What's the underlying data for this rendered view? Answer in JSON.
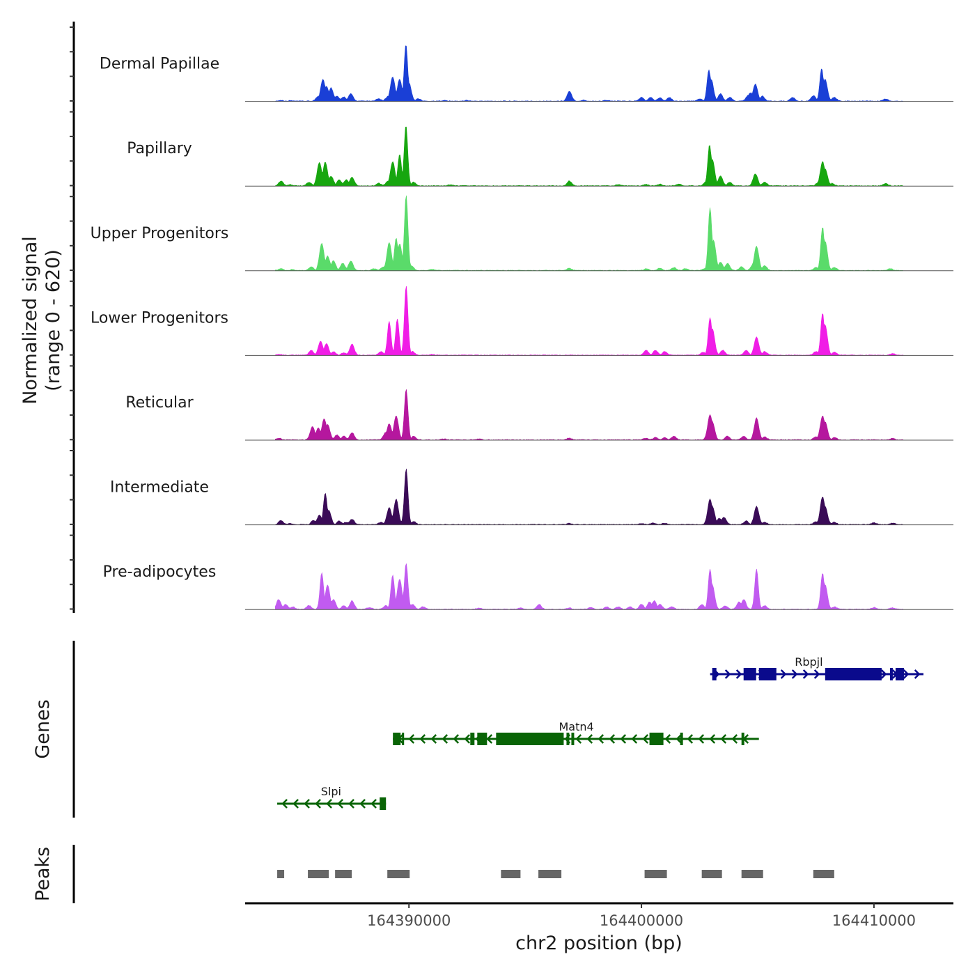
{
  "chart_data": {
    "type": "area",
    "title": "",
    "xlabel": "chr2 position (bp)",
    "ylabel": "Normalized signal\n(range 0 - 620)",
    "ylabel_lines": [
      "Normalized signal",
      "(range 0 - 620)"
    ],
    "ylim": [
      0,
      620
    ],
    "xlim": [
      164382954,
      164413418
    ],
    "x_ticks": [
      164390000,
      164400000,
      164410000
    ],
    "x_tick_labels": [
      "164390000",
      "164400000",
      "164410000"
    ],
    "grid": false,
    "tracks": [
      {
        "name": "Dermal Papillae",
        "color": "#1A3FD6",
        "peaks": [
          [
            164384500,
            6
          ],
          [
            164384900,
            4
          ],
          [
            164386100,
            40
          ],
          [
            164386300,
            180
          ],
          [
            164386450,
            120
          ],
          [
            164386650,
            110
          ],
          [
            164386900,
            40
          ],
          [
            164387200,
            35
          ],
          [
            164387500,
            60
          ],
          [
            164388700,
            20
          ],
          [
            164389100,
            40
          ],
          [
            164389300,
            200
          ],
          [
            164389600,
            180
          ],
          [
            164389870,
            470
          ],
          [
            164390000,
            150
          ],
          [
            164390400,
            20
          ],
          [
            164391500,
            6
          ],
          [
            164392500,
            6
          ],
          [
            164396900,
            80
          ],
          [
            164397500,
            8
          ],
          [
            164398500,
            8
          ],
          [
            164400000,
            30
          ],
          [
            164400400,
            30
          ],
          [
            164400800,
            30
          ],
          [
            164401200,
            30
          ],
          [
            164402500,
            20
          ],
          [
            164402900,
            260
          ],
          [
            164403000,
            180
          ],
          [
            164403400,
            60
          ],
          [
            164403800,
            30
          ],
          [
            164404600,
            50
          ],
          [
            164404700,
            70
          ],
          [
            164404900,
            140
          ],
          [
            164405200,
            40
          ],
          [
            164406500,
            30
          ],
          [
            164407400,
            45
          ],
          [
            164407750,
            270
          ],
          [
            164407900,
            180
          ],
          [
            164408300,
            30
          ],
          [
            164410500,
            18
          ]
        ]
      },
      {
        "name": "Papillary",
        "color": "#17A60F",
        "peaks": [
          [
            164384500,
            40
          ],
          [
            164384900,
            10
          ],
          [
            164385700,
            30
          ],
          [
            164386150,
            195
          ],
          [
            164386400,
            195
          ],
          [
            164386650,
            80
          ],
          [
            164387000,
            50
          ],
          [
            164387300,
            50
          ],
          [
            164387550,
            70
          ],
          [
            164388700,
            20
          ],
          [
            164389100,
            40
          ],
          [
            164389300,
            200
          ],
          [
            164389600,
            260
          ],
          [
            164389870,
            500
          ],
          [
            164390200,
            30
          ],
          [
            164391800,
            10
          ],
          [
            164396900,
            40
          ],
          [
            164399000,
            10
          ],
          [
            164400200,
            12
          ],
          [
            164400800,
            12
          ],
          [
            164401600,
            15
          ],
          [
            164402800,
            40
          ],
          [
            164402930,
            340
          ],
          [
            164403050,
            220
          ],
          [
            164403400,
            80
          ],
          [
            164403800,
            30
          ],
          [
            164404900,
            100
          ],
          [
            164405300,
            30
          ],
          [
            164407600,
            25
          ],
          [
            164407790,
            200
          ],
          [
            164407900,
            140
          ],
          [
            164408200,
            20
          ],
          [
            164410500,
            18
          ]
        ]
      },
      {
        "name": "Upper Progenitors",
        "color": "#5ADB6A",
        "peaks": [
          [
            164384500,
            15
          ],
          [
            164385000,
            8
          ],
          [
            164385800,
            30
          ],
          [
            164386250,
            225
          ],
          [
            164386500,
            120
          ],
          [
            164386750,
            80
          ],
          [
            164387150,
            60
          ],
          [
            164387500,
            80
          ],
          [
            164388500,
            15
          ],
          [
            164388900,
            30
          ],
          [
            164389150,
            230
          ],
          [
            164389450,
            270
          ],
          [
            164389600,
            220
          ],
          [
            164389880,
            620
          ],
          [
            164390100,
            40
          ],
          [
            164391000,
            10
          ],
          [
            164396900,
            20
          ],
          [
            164400200,
            15
          ],
          [
            164400800,
            20
          ],
          [
            164401400,
            25
          ],
          [
            164401900,
            15
          ],
          [
            164402700,
            15
          ],
          [
            164402950,
            520
          ],
          [
            164403100,
            250
          ],
          [
            164403400,
            70
          ],
          [
            164403700,
            60
          ],
          [
            164404300,
            30
          ],
          [
            164404800,
            50
          ],
          [
            164404950,
            200
          ],
          [
            164405300,
            40
          ],
          [
            164407500,
            25
          ],
          [
            164407790,
            360
          ],
          [
            164407900,
            240
          ],
          [
            164408300,
            25
          ],
          [
            164410700,
            15
          ]
        ]
      },
      {
        "name": "Lower Progenitors",
        "color": "#F01DE6",
        "peaks": [
          [
            164384400,
            8
          ],
          [
            164385800,
            40
          ],
          [
            164386200,
            115
          ],
          [
            164386450,
            95
          ],
          [
            164386750,
            30
          ],
          [
            164387200,
            20
          ],
          [
            164387550,
            90
          ],
          [
            164388800,
            30
          ],
          [
            164389150,
            280
          ],
          [
            164389500,
            300
          ],
          [
            164389880,
            570
          ],
          [
            164390150,
            30
          ],
          [
            164391000,
            6
          ],
          [
            164400200,
            40
          ],
          [
            164400600,
            40
          ],
          [
            164401000,
            30
          ],
          [
            164402650,
            25
          ],
          [
            164402950,
            310
          ],
          [
            164403050,
            220
          ],
          [
            164403500,
            40
          ],
          [
            164404500,
            40
          ],
          [
            164404950,
            150
          ],
          [
            164405300,
            30
          ],
          [
            164407500,
            30
          ],
          [
            164407790,
            350
          ],
          [
            164407900,
            250
          ],
          [
            164408300,
            25
          ],
          [
            164410800,
            12
          ]
        ]
      },
      {
        "name": "Reticular",
        "color": "#B5179E",
        "peaks": [
          [
            164384400,
            15
          ],
          [
            164385850,
            110
          ],
          [
            164386100,
            100
          ],
          [
            164386350,
            175
          ],
          [
            164386500,
            130
          ],
          [
            164386900,
            40
          ],
          [
            164387200,
            30
          ],
          [
            164387550,
            60
          ],
          [
            164389000,
            60
          ],
          [
            164389150,
            135
          ],
          [
            164389450,
            200
          ],
          [
            164389880,
            420
          ],
          [
            164390200,
            30
          ],
          [
            164391500,
            8
          ],
          [
            164393000,
            8
          ],
          [
            164396900,
            15
          ],
          [
            164400200,
            15
          ],
          [
            164400600,
            20
          ],
          [
            164401000,
            20
          ],
          [
            164401400,
            30
          ],
          [
            164402950,
            210
          ],
          [
            164403050,
            150
          ],
          [
            164403700,
            30
          ],
          [
            164404400,
            30
          ],
          [
            164404950,
            180
          ],
          [
            164405300,
            25
          ],
          [
            164407500,
            25
          ],
          [
            164407790,
            200
          ],
          [
            164407900,
            150
          ],
          [
            164408300,
            20
          ],
          [
            164410800,
            12
          ]
        ]
      },
      {
        "name": "Intermediate",
        "color": "#3A0B57",
        "peaks": [
          [
            164384500,
            35
          ],
          [
            164384900,
            10
          ],
          [
            164385900,
            35
          ],
          [
            164386150,
            80
          ],
          [
            164386400,
            260
          ],
          [
            164386550,
            120
          ],
          [
            164387000,
            30
          ],
          [
            164387300,
            20
          ],
          [
            164387550,
            45
          ],
          [
            164388800,
            20
          ],
          [
            164389150,
            140
          ],
          [
            164389450,
            210
          ],
          [
            164389880,
            460
          ],
          [
            164390200,
            25
          ],
          [
            164396900,
            10
          ],
          [
            164400000,
            10
          ],
          [
            164400500,
            12
          ],
          [
            164401000,
            12
          ],
          [
            164402950,
            210
          ],
          [
            164403050,
            150
          ],
          [
            164403350,
            50
          ],
          [
            164403550,
            60
          ],
          [
            164404500,
            30
          ],
          [
            164404950,
            150
          ],
          [
            164405300,
            20
          ],
          [
            164407500,
            25
          ],
          [
            164407790,
            230
          ],
          [
            164407900,
            150
          ],
          [
            164408300,
            20
          ],
          [
            164410000,
            15
          ],
          [
            164410800,
            12
          ]
        ]
      },
      {
        "name": "Pre-adipocytes",
        "color": "#C15BF0",
        "peaks": [
          [
            164384400,
            80
          ],
          [
            164384700,
            40
          ],
          [
            164385000,
            20
          ],
          [
            164385700,
            30
          ],
          [
            164386250,
            300
          ],
          [
            164386500,
            200
          ],
          [
            164386750,
            80
          ],
          [
            164387200,
            30
          ],
          [
            164387550,
            70
          ],
          [
            164388300,
            15
          ],
          [
            164389000,
            30
          ],
          [
            164389300,
            280
          ],
          [
            164389600,
            250
          ],
          [
            164389880,
            380
          ],
          [
            164390150,
            40
          ],
          [
            164390600,
            20
          ],
          [
            164393000,
            10
          ],
          [
            164394800,
            12
          ],
          [
            164395600,
            40
          ],
          [
            164396900,
            10
          ],
          [
            164397800,
            15
          ],
          [
            164398500,
            20
          ],
          [
            164399000,
            20
          ],
          [
            164399500,
            20
          ],
          [
            164400000,
            40
          ],
          [
            164400350,
            60
          ],
          [
            164400550,
            70
          ],
          [
            164400800,
            40
          ],
          [
            164401300,
            20
          ],
          [
            164402600,
            40
          ],
          [
            164402950,
            330
          ],
          [
            164403050,
            200
          ],
          [
            164403600,
            30
          ],
          [
            164404200,
            60
          ],
          [
            164404400,
            80
          ],
          [
            164404950,
            330
          ],
          [
            164405300,
            30
          ],
          [
            164407790,
            300
          ],
          [
            164407900,
            200
          ],
          [
            164408300,
            20
          ],
          [
            164410000,
            15
          ],
          [
            164410800,
            12
          ]
        ]
      }
    ],
    "genes": [
      {
        "name": "Rbpjl",
        "strand": "+",
        "color": "#0A0A8C",
        "row": 0,
        "start": 164402954,
        "end": 164412129,
        "label_pos": 164407200,
        "exons": [
          [
            164403044,
            164403224
          ],
          [
            164404393,
            164404933
          ],
          [
            164405053,
            164405803
          ],
          [
            164407901,
            164410330
          ],
          [
            164410690,
            164410810
          ],
          [
            164410930,
            164411290
          ]
        ]
      },
      {
        "name": "Matn4",
        "strand": "-",
        "color": "#096406",
        "row": 1,
        "start": 164389310,
        "end": 164405052,
        "label_pos": 164397200,
        "exons": [
          [
            164389310,
            164389640
          ],
          [
            164389700,
            164389790
          ],
          [
            164392638,
            164392818
          ],
          [
            164392938,
            164393358
          ],
          [
            164393748,
            164396656
          ],
          [
            164396776,
            164396896
          ],
          [
            164396986,
            164397106
          ],
          [
            164400345,
            164400945
          ],
          [
            164401665,
            164401785
          ],
          [
            164404303,
            164404423
          ]
        ]
      },
      {
        "name": "Slpi",
        "strand": "-",
        "color": "#096406",
        "row": 2,
        "start": 164384333,
        "end": 164389011,
        "label_pos": 164386650,
        "exons": [
          [
            164388741,
            164389011
          ]
        ]
      }
    ],
    "peaks": [
      [
        164384333,
        164384633
      ],
      [
        164385652,
        164386552
      ],
      [
        164386822,
        164387541
      ],
      [
        164389070,
        164390030
      ],
      [
        164393958,
        164394798
      ],
      [
        164395567,
        164396556
      ],
      [
        164400135,
        164401094
      ],
      [
        164402594,
        164403463
      ],
      [
        164404303,
        164405232
      ],
      [
        164407391,
        164408291
      ]
    ],
    "panel_labels": {
      "genes": "Genes",
      "peaks": "Peaks"
    }
  }
}
